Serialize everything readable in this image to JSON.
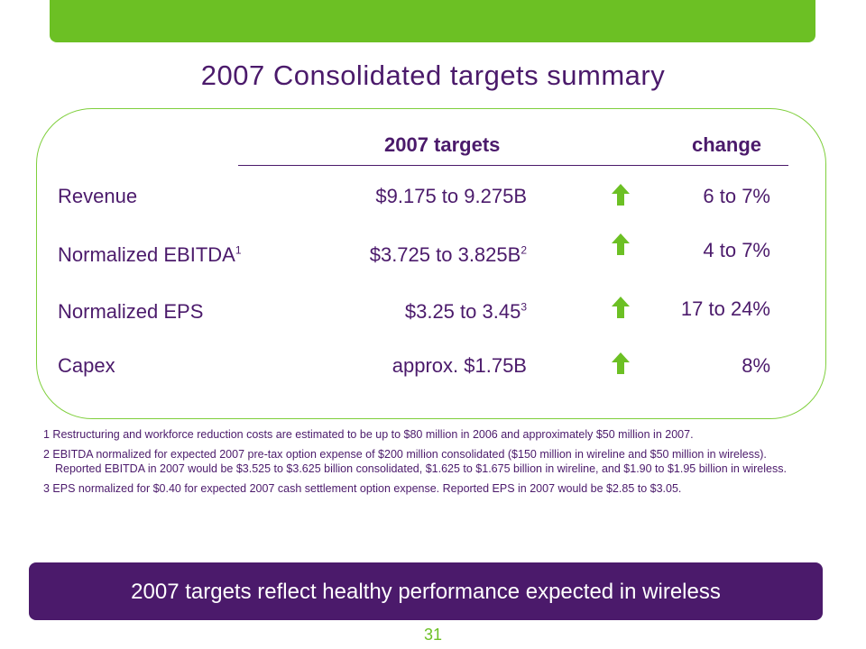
{
  "title": "2007 Consolidated targets summary",
  "header": {
    "targets_label": "2007 targets",
    "change_label": "change"
  },
  "rows": [
    {
      "label": "Revenue",
      "label_sup": "",
      "target": "$9.175 to 9.275B",
      "target_sup": "",
      "change": "6 to 7%",
      "direction": "up"
    },
    {
      "label": "Normalized EBITDA",
      "label_sup": "1",
      "target": "$3.725 to 3.825B",
      "target_sup": "2",
      "change": "4 to 7%",
      "direction": "up"
    },
    {
      "label": "Normalized EPS",
      "label_sup": "",
      "target": "$3.25 to 3.45",
      "target_sup": "3",
      "change": "17 to 24%",
      "direction": "up"
    },
    {
      "label": "Capex",
      "label_sup": "",
      "target": "approx. $1.75B",
      "target_sup": "",
      "change": "8%",
      "direction": "up"
    }
  ],
  "footnotes": [
    "1 Restructuring and workforce reduction costs are estimated to be up to $80 million in 2006 and approximately $50 million in 2007.",
    "2 EBITDA normalized for expected 2007 pre-tax option expense of $200 million consolidated ($150 million in wireline and $50 million in wireless). Reported EBITDA in 2007 would be $3.525 to $3.625 billion consolidated, $1.625 to $1.675 billion in wireline, and $1.90 to $1.95 billion in wireless.",
    "3 EPS normalized for $0.40 for expected 2007 cash settlement option expense. Reported EPS in 2007 would be $2.85 to $3.05."
  ],
  "banner": "2007 targets reflect healthy performance expected in wireless",
  "page_number": "31",
  "colors": {
    "green": "#6cc024",
    "purple": "#4b1a6b"
  }
}
